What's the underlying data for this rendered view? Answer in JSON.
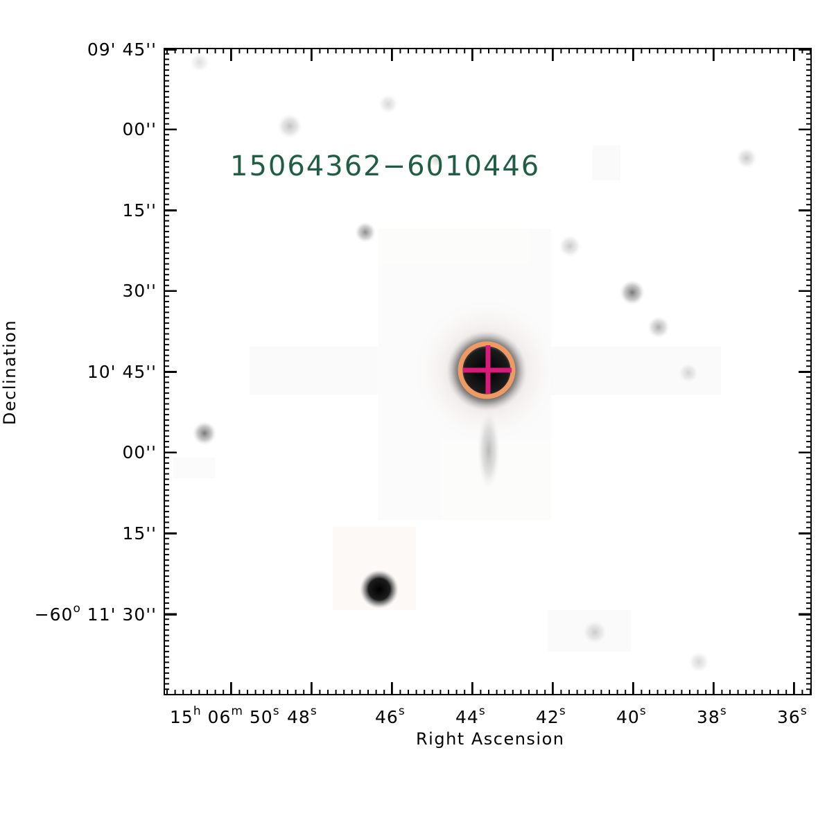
{
  "image": {
    "object_label": "15064362−6010446",
    "x_axis_title": "Right Ascension",
    "y_axis_title": "Declination",
    "label_color": "#1f5e44",
    "marker_circle_color": "#ef9a62",
    "marker_cross_color": "#d81b7a",
    "y_tick_labels": [
      {
        "main": "09' 45''",
        "sup": "",
        "pre": ""
      },
      {
        "main": "00''",
        "sup": "",
        "pre": ""
      },
      {
        "main": "15''",
        "sup": "",
        "pre": ""
      },
      {
        "main": "30''",
        "sup": "",
        "pre": ""
      },
      {
        "main": "10' 45''",
        "sup": "",
        "pre": ""
      },
      {
        "main": "00''",
        "sup": "",
        "pre": ""
      },
      {
        "main": "15''",
        "sup": "",
        "pre": ""
      },
      {
        "pre": "−60",
        "sup": "o",
        "main": " 11' 30''"
      }
    ],
    "x_tick_labels": {
      "first": {
        "h": "15",
        "h_unit": "h",
        "m": "06",
        "m_unit": "m",
        "s": "50",
        "s_unit": "s"
      },
      "rest": [
        "48",
        "46",
        "44",
        "42",
        "40",
        "38",
        "36"
      ],
      "unit": "s"
    }
  }
}
